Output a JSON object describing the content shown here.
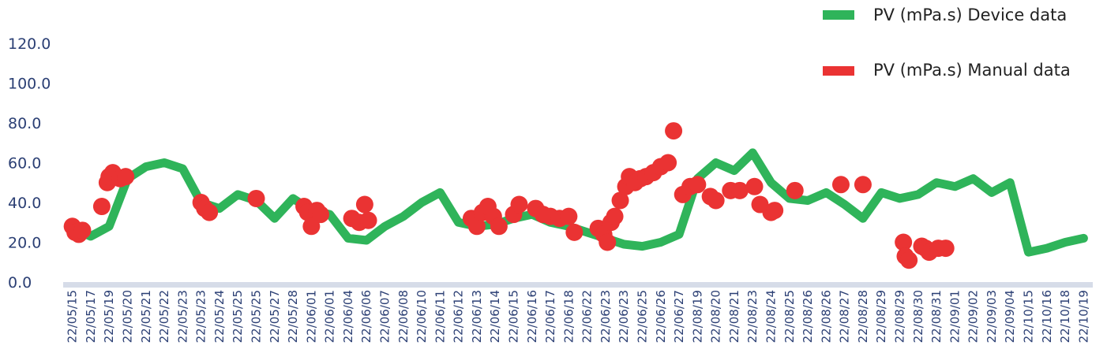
{
  "chart_data": {
    "type": "line",
    "title": "",
    "xlabel": "",
    "ylabel": "",
    "ylim": [
      0,
      120
    ],
    "yticks": [
      "0.0",
      "20.0",
      "40.0",
      "60.0",
      "80.0",
      "100.0",
      "120.0"
    ],
    "grid": false,
    "legend_position": "top-right",
    "colors": {
      "device": "#2fb45a",
      "manual": "#ea3333",
      "axis": "#d6dce8",
      "text": "#2b3f74"
    },
    "categories": [
      "22/05/15",
      "22/05/17",
      "22/05/19",
      "22/05/20",
      "22/05/21",
      "22/05/22",
      "22/05/23",
      "22/05/23",
      "22/05/24",
      "22/05/25",
      "22/05/25",
      "22/05/27",
      "22/05/28",
      "22/06/01",
      "22/06/01",
      "22/06/04",
      "22/06/06",
      "22/06/07",
      "22/06/08",
      "22/06/10",
      "22/06/11",
      "22/06/12",
      "22/06/13",
      "22/06/14",
      "22/06/15",
      "22/06/16",
      "22/06/17",
      "22/06/18",
      "22/06/22",
      "22/06/23",
      "22/06/23",
      "22/06/25",
      "22/06/26",
      "22/06/27",
      "22/08/19",
      "22/08/20",
      "22/08/21",
      "22/08/23",
      "22/08/24",
      "22/08/25",
      "22/08/26",
      "22/08/26",
      "22/08/27",
      "22/08/28",
      "22/08/29",
      "22/08/29",
      "22/08/30",
      "22/08/31",
      "22/09/01",
      "22/09/02",
      "22/09/03",
      "22/09/04",
      "22/10/15",
      "22/10/16",
      "22/10/18",
      "22/10/19"
    ],
    "series": [
      {
        "name": "PV (mPa.s) Device data",
        "kind": "line",
        "values": [
          27,
          23,
          28,
          52,
          58,
          60,
          57,
          40,
          37,
          44,
          41,
          32,
          42,
          36,
          34,
          22,
          21,
          28,
          33,
          40,
          45,
          30,
          28,
          29,
          32,
          34,
          30,
          28,
          25,
          22,
          19,
          18,
          20,
          24,
          52,
          60,
          56,
          65,
          50,
          42,
          41,
          45,
          39,
          32,
          45,
          42,
          44,
          50,
          48,
          52,
          45,
          50,
          15,
          17,
          20,
          22
        ]
      },
      {
        "name": "PV (mPa.s) Manual data",
        "kind": "scatter",
        "points": [
          [
            0.0,
            28
          ],
          [
            0.15,
            25
          ],
          [
            0.35,
            24
          ],
          [
            0.55,
            26
          ],
          [
            1.6,
            38
          ],
          [
            1.9,
            50
          ],
          [
            2.0,
            53
          ],
          [
            2.2,
            55
          ],
          [
            2.6,
            52
          ],
          [
            2.9,
            53
          ],
          [
            7.0,
            40
          ],
          [
            7.2,
            37
          ],
          [
            7.45,
            35
          ],
          [
            10.0,
            42
          ],
          [
            12.6,
            38
          ],
          [
            12.8,
            35
          ],
          [
            13.0,
            28
          ],
          [
            13.3,
            36
          ],
          [
            13.5,
            34
          ],
          [
            15.2,
            32
          ],
          [
            15.6,
            30
          ],
          [
            15.9,
            39
          ],
          [
            16.1,
            31
          ],
          [
            21.7,
            32
          ],
          [
            22.0,
            28
          ],
          [
            22.3,
            35
          ],
          [
            22.6,
            38
          ],
          [
            22.9,
            33
          ],
          [
            23.2,
            28
          ],
          [
            24.0,
            34
          ],
          [
            24.3,
            39
          ],
          [
            25.2,
            37
          ],
          [
            25.6,
            34
          ],
          [
            26.0,
            33
          ],
          [
            26.5,
            32
          ],
          [
            27.0,
            33
          ],
          [
            27.3,
            25
          ],
          [
            28.6,
            27
          ],
          [
            28.9,
            24
          ],
          [
            29.1,
            20
          ],
          [
            29.3,
            30
          ],
          [
            29.5,
            33
          ],
          [
            29.8,
            41
          ],
          [
            30.1,
            48
          ],
          [
            30.3,
            53
          ],
          [
            30.6,
            50
          ],
          [
            30.9,
            52
          ],
          [
            31.2,
            53
          ],
          [
            31.6,
            55
          ],
          [
            32.0,
            58
          ],
          [
            32.4,
            60
          ],
          [
            32.7,
            76
          ],
          [
            33.2,
            44
          ],
          [
            33.6,
            48
          ],
          [
            34.0,
            49
          ],
          [
            34.7,
            43
          ],
          [
            35.0,
            41
          ],
          [
            35.8,
            46
          ],
          [
            36.3,
            46
          ],
          [
            37.1,
            48
          ],
          [
            37.4,
            39
          ],
          [
            38.0,
            35
          ],
          [
            38.2,
            36
          ],
          [
            39.3,
            46
          ],
          [
            41.8,
            49
          ],
          [
            43.0,
            49
          ],
          [
            45.2,
            20
          ],
          [
            45.3,
            13
          ],
          [
            45.5,
            11
          ],
          [
            46.2,
            18
          ],
          [
            46.4,
            17
          ],
          [
            46.6,
            15
          ],
          [
            47.1,
            17
          ],
          [
            47.5,
            17
          ]
        ]
      }
    ]
  }
}
